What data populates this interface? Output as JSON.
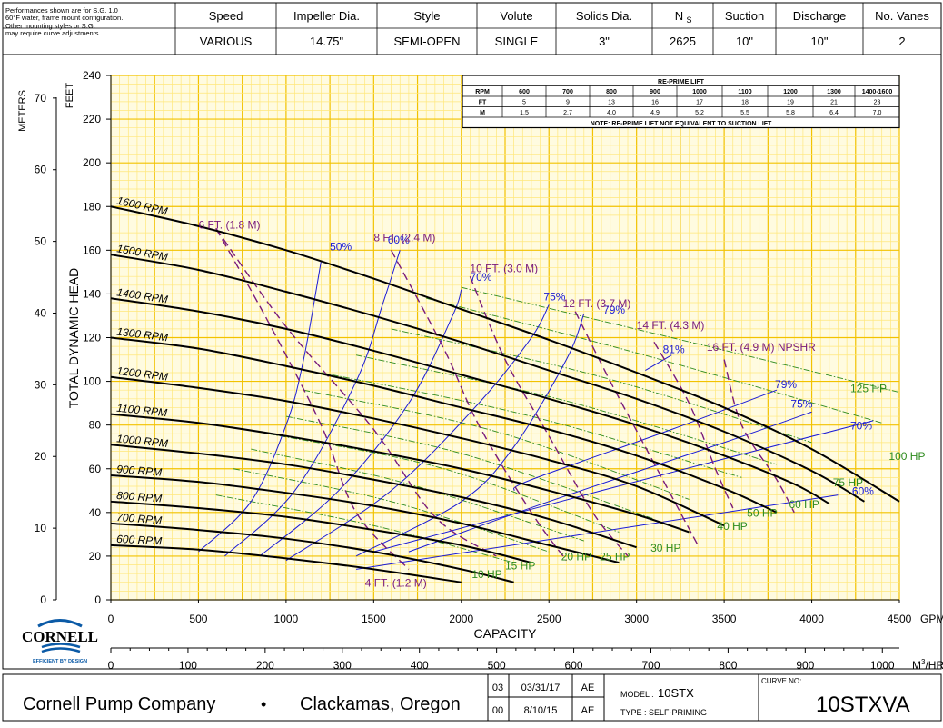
{
  "header": {
    "note_lines": [
      "Performances shown are for S.G. 1.0",
      "60°F water, frame mount configuration.",
      "Other mounting styles or S.G.",
      "may require curve adjustments."
    ],
    "columns": [
      {
        "label": "Speed",
        "value": "VARIOUS"
      },
      {
        "label": "Impeller Dia.",
        "value": "14.75\""
      },
      {
        "label": "Style",
        "value": "SEMI-OPEN"
      },
      {
        "label": "Volute",
        "value": "SINGLE"
      },
      {
        "label": "Solids Dia.",
        "value": "3\""
      },
      {
        "label": "NS",
        "value": "2625"
      },
      {
        "label": "Suction",
        "value": "10\""
      },
      {
        "label": "Discharge",
        "value": "10\""
      },
      {
        "label": "No. Vanes",
        "value": "2"
      }
    ]
  },
  "reprime_table": {
    "title": "RE-PRIME LIFT",
    "rows": [
      [
        "RPM",
        "600",
        "700",
        "800",
        "900",
        "1000",
        "1100",
        "1200",
        "1300",
        "1400-1600"
      ],
      [
        "FT",
        "5",
        "9",
        "13",
        "16",
        "17",
        "18",
        "19",
        "21",
        "23"
      ],
      [
        "M",
        "1.5",
        "2.7",
        "4.0",
        "4.9",
        "5.2",
        "5.5",
        "5.8",
        "6.4",
        "7.0"
      ]
    ],
    "note": "NOTE: RE-PRIME LIFT NOT EQUIVALENT TO SUCTION LIFT"
  },
  "footer": {
    "company": "Cornell Pump Company",
    "bullet": "•",
    "location": "Clackamas, Oregon",
    "revisions": [
      [
        "03",
        "03/31/17",
        "AE"
      ],
      [
        "00",
        "8/10/15",
        "AE"
      ]
    ],
    "model_label": "MODEL :",
    "model_value": "10STX",
    "type_text": "TYPE : SELF-PRIMING",
    "curve_label": "CURVE NO:",
    "curve_value": "10STXVA"
  },
  "logo": {
    "name": "CORNELL",
    "tagline": "EFFICIENT BY DESIGN"
  },
  "colors": {
    "grid": "#f2c200",
    "grid_minor": "#ffe77a",
    "bg": "#fffbe0",
    "speed": "#000000",
    "efficiency": "#1a1ad6",
    "npshr": "#7a1a7a",
    "hp": "#2e8b1e"
  },
  "chart_data": {
    "type": "line",
    "xlabel": "CAPACITY",
    "ylabel": "TOTAL DYNAMIC HEAD",
    "x_unit": "GPM",
    "x2_unit": "M3/HR",
    "y_unit_feet": "FEET",
    "y_unit_meters": "METERS",
    "xlim": [
      0,
      4500
    ],
    "ylim": [
      0,
      240
    ],
    "x_ticks": [
      "0",
      "500",
      "1000",
      "1500",
      "2000",
      "2500",
      "3000",
      "3500",
      "4000",
      "4500"
    ],
    "y_ticks": [
      "0",
      "20",
      "40",
      "60",
      "80",
      "100",
      "120",
      "140",
      "160",
      "180",
      "200",
      "220",
      "240"
    ],
    "m3hr_ticks": [
      "0",
      "100",
      "200",
      "300",
      "400",
      "500",
      "600",
      "700",
      "800",
      "900",
      "1000"
    ],
    "meter_ticks": [
      "0",
      "10",
      "20",
      "30",
      "40",
      "50",
      "60",
      "70"
    ],
    "speed_curves": [
      {
        "name": "1600 RPM",
        "points": [
          [
            0,
            180
          ],
          [
            500,
            171
          ],
          [
            1000,
            160
          ],
          [
            1500,
            147
          ],
          [
            2000,
            133
          ],
          [
            2500,
            119
          ],
          [
            3000,
            104
          ],
          [
            3500,
            88
          ],
          [
            4000,
            69
          ],
          [
            4500,
            45
          ]
        ]
      },
      {
        "name": "1500 RPM",
        "points": [
          [
            0,
            158
          ],
          [
            500,
            151
          ],
          [
            1000,
            141
          ],
          [
            1500,
            130
          ],
          [
            2000,
            118
          ],
          [
            2500,
            105
          ],
          [
            3000,
            92
          ],
          [
            3500,
            77
          ],
          [
            4000,
            59
          ],
          [
            4300,
            45
          ]
        ]
      },
      {
        "name": "1400 RPM",
        "points": [
          [
            0,
            138
          ],
          [
            500,
            132
          ],
          [
            1000,
            124
          ],
          [
            1500,
            114
          ],
          [
            2000,
            103
          ],
          [
            2500,
            92
          ],
          [
            3000,
            80
          ],
          [
            3500,
            66
          ],
          [
            3900,
            53
          ],
          [
            4100,
            44
          ]
        ]
      },
      {
        "name": "1300 RPM",
        "points": [
          [
            0,
            120
          ],
          [
            500,
            115
          ],
          [
            1000,
            107
          ],
          [
            1500,
            98
          ],
          [
            2000,
            88
          ],
          [
            2500,
            78
          ],
          [
            3000,
            66
          ],
          [
            3500,
            51
          ],
          [
            3800,
            40
          ]
        ]
      },
      {
        "name": "1200 RPM",
        "points": [
          [
            0,
            102
          ],
          [
            500,
            97
          ],
          [
            1000,
            91
          ],
          [
            1500,
            83
          ],
          [
            2000,
            74
          ],
          [
            2500,
            64
          ],
          [
            3000,
            52
          ],
          [
            3500,
            34
          ]
        ]
      },
      {
        "name": "1100 RPM",
        "points": [
          [
            0,
            85
          ],
          [
            500,
            81
          ],
          [
            1000,
            75
          ],
          [
            1500,
            68
          ],
          [
            2000,
            60
          ],
          [
            2500,
            50
          ],
          [
            3000,
            39
          ],
          [
            3300,
            31
          ]
        ]
      },
      {
        "name": "1000 RPM",
        "points": [
          [
            0,
            71
          ],
          [
            500,
            67
          ],
          [
            1000,
            62
          ],
          [
            1500,
            55
          ],
          [
            2000,
            47
          ],
          [
            2500,
            37
          ],
          [
            3000,
            24
          ]
        ]
      },
      {
        "name": "900 RPM",
        "points": [
          [
            0,
            57
          ],
          [
            500,
            54
          ],
          [
            1000,
            49
          ],
          [
            1500,
            43
          ],
          [
            2000,
            35
          ],
          [
            2500,
            25
          ],
          [
            2900,
            17
          ]
        ]
      },
      {
        "name": "800 RPM",
        "points": [
          [
            0,
            45
          ],
          [
            500,
            42
          ],
          [
            1000,
            38
          ],
          [
            1500,
            32
          ],
          [
            2000,
            25
          ],
          [
            2400,
            17
          ]
        ]
      },
      {
        "name": "700 RPM",
        "points": [
          [
            0,
            35
          ],
          [
            500,
            32
          ],
          [
            1000,
            28
          ],
          [
            1500,
            22
          ],
          [
            2000,
            14
          ],
          [
            2300,
            8
          ]
        ]
      },
      {
        "name": "600 RPM",
        "points": [
          [
            0,
            25
          ],
          [
            500,
            23
          ],
          [
            1000,
            19
          ],
          [
            1500,
            14
          ],
          [
            2000,
            8
          ]
        ]
      }
    ],
    "efficiency_curves": [
      {
        "name": "50%",
        "points": [
          [
            500,
            22
          ],
          [
            800,
            45
          ],
          [
            1000,
            80
          ],
          [
            1100,
            110
          ],
          [
            1200,
            155
          ]
        ],
        "label_at": [
          1250,
          160
        ]
      },
      {
        "name": "60%",
        "points": [
          [
            650,
            20
          ],
          [
            1050,
            50
          ],
          [
            1400,
            100
          ],
          [
            1550,
            135
          ],
          [
            1650,
            160
          ]
        ],
        "label_at": [
          1580,
          163
        ]
      },
      {
        "name": "70%",
        "points": [
          [
            850,
            20
          ],
          [
            1300,
            50
          ],
          [
            1700,
            90
          ],
          [
            1950,
            130
          ],
          [
            2000,
            142
          ]
        ],
        "label_at": [
          2050,
          146
        ]
      },
      {
        "name": "75%",
        "points": [
          [
            1000,
            18
          ],
          [
            1600,
            50
          ],
          [
            2100,
            90
          ],
          [
            2400,
            120
          ],
          [
            2500,
            135
          ]
        ],
        "label_at": [
          2470,
          137
        ]
      },
      {
        "name": "79%",
        "points": [
          [
            1400,
            20
          ],
          [
            2000,
            45
          ],
          [
            2300,
            70
          ],
          [
            2600,
            110
          ],
          [
            2700,
            131
          ]
        ],
        "label_at": [
          2810,
          131
        ]
      },
      {
        "name": "81%",
        "points": [
          [
            3050,
            105
          ],
          [
            3200,
            112
          ]
        ],
        "label_at": [
          3150,
          113
        ]
      },
      {
        "name": "79%",
        "points": [
          [
            2300,
            50
          ],
          [
            2400,
            55
          ],
          [
            3200,
            78
          ],
          [
            3800,
            96
          ]
        ],
        "label_at": [
          3790,
          97
        ]
      },
      {
        "name": "75%",
        "points": [
          [
            1700,
            22
          ],
          [
            2500,
            45
          ],
          [
            3500,
            72
          ],
          [
            4000,
            86
          ]
        ],
        "label_at": [
          3880,
          88
        ]
      },
      {
        "name": "70%",
        "points": [
          [
            1500,
            22
          ],
          [
            2800,
            50
          ],
          [
            4350,
            82
          ]
        ],
        "label_at": [
          4220,
          78
        ]
      },
      {
        "name": "60%",
        "points": [
          [
            1400,
            14
          ],
          [
            4150,
            48
          ]
        ],
        "label_at": [
          4230,
          48
        ]
      }
    ],
    "npshr_curves": [
      {
        "name": "4 FT. (1.2 M)",
        "points": [
          [
            600,
            170
          ],
          [
            900,
            127
          ],
          [
            1200,
            80
          ],
          [
            1400,
            40
          ],
          [
            1700,
            14
          ]
        ],
        "label_at": [
          1450,
          6
        ]
      },
      {
        "name": "6 FT. (1.8 M)",
        "points": [
          [
            600,
            170
          ],
          [
            1000,
            125
          ],
          [
            1500,
            78
          ],
          [
            1850,
            38
          ],
          [
            2200,
            20
          ]
        ],
        "label_at": [
          500,
          170
        ]
      },
      {
        "name": "8 FT. (2.4 M)",
        "points": [
          [
            1600,
            160
          ],
          [
            1900,
            115
          ],
          [
            2100,
            80
          ],
          [
            2400,
            40
          ],
          [
            2600,
            18
          ]
        ],
        "label_at": [
          1500,
          164
        ]
      },
      {
        "name": "10 FT. (3.0 M)",
        "points": [
          [
            2050,
            148
          ],
          [
            2250,
            110
          ],
          [
            2500,
            75
          ],
          [
            2750,
            40
          ],
          [
            2950,
            20
          ]
        ],
        "label_at": [
          2050,
          150
        ]
      },
      {
        "name": "12 FT. (3.7 M)",
        "points": [
          [
            2650,
            132
          ],
          [
            2850,
            100
          ],
          [
            3050,
            70
          ],
          [
            3250,
            40
          ],
          [
            3350,
            25
          ]
        ],
        "label_at": [
          2580,
          134
        ]
      },
      {
        "name": "14 FT. (4.3 M)",
        "points": [
          [
            3100,
            118
          ],
          [
            3300,
            90
          ],
          [
            3450,
            60
          ],
          [
            3550,
            42
          ]
        ],
        "label_at": [
          3000,
          124
        ]
      },
      {
        "name": "16 FT. (4.9 M) NPSHR",
        "points": [
          [
            3500,
            110
          ],
          [
            3600,
            80
          ],
          [
            3800,
            55
          ],
          [
            3900,
            40
          ]
        ],
        "label_at": [
          3400,
          114
        ]
      }
    ],
    "hp_curves": [
      {
        "name": "10 HP",
        "points": [
          [
            600,
            48
          ],
          [
            1500,
            34
          ],
          [
            2300,
            17
          ]
        ],
        "label_at": [
          2060,
          10
        ]
      },
      {
        "name": "15 HP",
        "points": [
          [
            700,
            60
          ],
          [
            1600,
            45
          ],
          [
            2500,
            22
          ]
        ],
        "label_at": [
          2250,
          14
        ]
      },
      {
        "name": "20 HP",
        "points": [
          [
            800,
            69
          ],
          [
            1700,
            53
          ],
          [
            2700,
            27
          ]
        ],
        "label_at": [
          2570,
          18
        ]
      },
      {
        "name": "25 HP",
        "points": [
          [
            900,
            76
          ],
          [
            1900,
            60
          ],
          [
            2900,
            31
          ]
        ],
        "label_at": [
          2790,
          18
        ]
      },
      {
        "name": "30 HP",
        "points": [
          [
            1000,
            84
          ],
          [
            2000,
            67
          ],
          [
            3100,
            37
          ]
        ],
        "label_at": [
          3080,
          22
        ]
      },
      {
        "name": "40 HP",
        "points": [
          [
            1100,
            96
          ],
          [
            2200,
            77
          ],
          [
            3300,
            46
          ]
        ],
        "label_at": [
          3460,
          32
        ]
      },
      {
        "name": "50 HP",
        "points": [
          [
            1200,
            104
          ],
          [
            2400,
            84
          ],
          [
            3600,
            56
          ]
        ],
        "label_at": [
          3630,
          38
        ]
      },
      {
        "name": "60 HP",
        "points": [
          [
            1400,
            112
          ],
          [
            2600,
            91
          ],
          [
            3800,
            62
          ]
        ],
        "label_at": [
          3870,
          42
        ]
      },
      {
        "name": "75 HP",
        "points": [
          [
            1600,
            124
          ],
          [
            2800,
            102
          ],
          [
            4000,
            72
          ]
        ],
        "label_at": [
          4120,
          52
        ]
      },
      {
        "name": "100 HP",
        "points": [
          [
            1800,
            138
          ],
          [
            3000,
            113
          ],
          [
            4400,
            81
          ]
        ],
        "label_at": [
          4440,
          64
        ]
      },
      {
        "name": "125 HP",
        "points": [
          [
            2000,
            143
          ],
          [
            3200,
            120
          ],
          [
            4500,
            95
          ]
        ],
        "label_at": [
          4220,
          95
        ]
      }
    ]
  }
}
